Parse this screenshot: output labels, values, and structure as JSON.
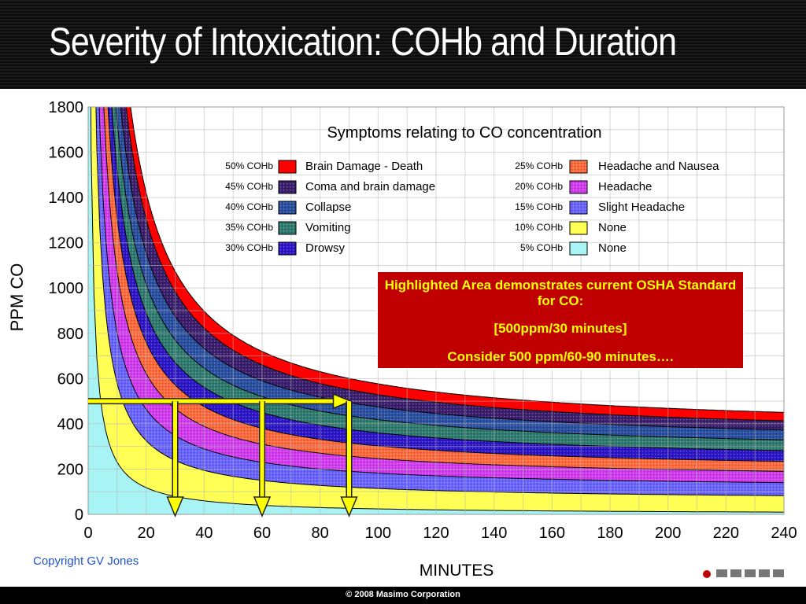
{
  "page": {
    "title": "Severity of Intoxication: COHb and Duration",
    "footer": "© 2008 Masimo Corporation",
    "copyright": "Copyright GV Jones"
  },
  "note": {
    "line1": "Highlighted Area demonstrates current OSHA Standard for CO:",
    "line2": "[500ppm/30 minutes]",
    "line3": "Consider 500 ppm/60-90 minutes…."
  },
  "colors": {
    "highlight_arrow": "#ffff00",
    "note_box": "#c00000",
    "title_bar": "#111111"
  },
  "chart_data": {
    "type": "area",
    "title": "Symptoms relating to CO concentration",
    "xlabel": "MINUTES",
    "ylabel": "PPM CO",
    "xlim": [
      0,
      240
    ],
    "ylim": [
      0,
      1800
    ],
    "x_ticks": [
      0,
      20,
      40,
      60,
      80,
      100,
      120,
      140,
      160,
      180,
      200,
      220,
      240
    ],
    "y_ticks": [
      0,
      200,
      400,
      600,
      800,
      1000,
      1200,
      1400,
      1600,
      1800
    ],
    "grid": true,
    "legend_placement": "top",
    "series": [
      {
        "cohb": "50% COHb",
        "name": "Brain Damage - Death",
        "color": "#ff0000",
        "pattern": "solid",
        "asymptote_ppm": 360,
        "ppm_at_60min": 720,
        "ppm_at_30min": 1240
      },
      {
        "cohb": "45% COHb",
        "name": "Coma and brain damage",
        "color": "#3b1f6e",
        "pattern": "dots",
        "asymptote_ppm": 330,
        "ppm_at_60min": 660,
        "ppm_at_30min": 1130
      },
      {
        "cohb": "40% COHb",
        "name": "Collapse",
        "color": "#2a4fa0",
        "pattern": "dots",
        "asymptote_ppm": 300,
        "ppm_at_60min": 590,
        "ppm_at_30min": 1010
      },
      {
        "cohb": "35% COHb",
        "name": "Vomiting",
        "color": "#2e7a6e",
        "pattern": "dots",
        "asymptote_ppm": 265,
        "ppm_at_60min": 520,
        "ppm_at_30min": 890
      },
      {
        "cohb": "30% COHb",
        "name": "Drowsy",
        "color": "#2d16c8",
        "pattern": "dots",
        "asymptote_ppm": 225,
        "ppm_at_60min": 450,
        "ppm_at_30min": 760
      },
      {
        "cohb": "25% COHb",
        "name": "Headache and Nausea",
        "color": "#ff6a3c",
        "pattern": "dots",
        "asymptote_ppm": 185,
        "ppm_at_60min": 380,
        "ppm_at_30min": 640
      },
      {
        "cohb": "20% COHb",
        "name": "Headache",
        "color": "#d23cf0",
        "pattern": "dots",
        "asymptote_ppm": 150,
        "ppm_at_60min": 310,
        "ppm_at_30min": 520
      },
      {
        "cohb": "15% COHb",
        "name": "Slight Headache",
        "color": "#6a64ff",
        "pattern": "dots",
        "asymptote_ppm": 110,
        "ppm_at_60min": 230,
        "ppm_at_30min": 390
      },
      {
        "cohb": "10% COHb",
        "name": "None",
        "color": "#ffff55",
        "pattern": "solid",
        "asymptote_ppm": 60,
        "ppm_at_60min": 150,
        "ppm_at_30min": 260
      },
      {
        "cohb": "5% COHb",
        "name": "None",
        "color": "#a8f4f4",
        "pattern": "solid",
        "asymptote_ppm": 0,
        "ppm_at_60min": 40,
        "ppm_at_30min": 90
      }
    ],
    "annotations": {
      "osha_line_ppm": 500,
      "osha_line_minutes": [
        0,
        90
      ],
      "down_arrows_minutes": [
        30,
        60,
        90
      ]
    }
  }
}
